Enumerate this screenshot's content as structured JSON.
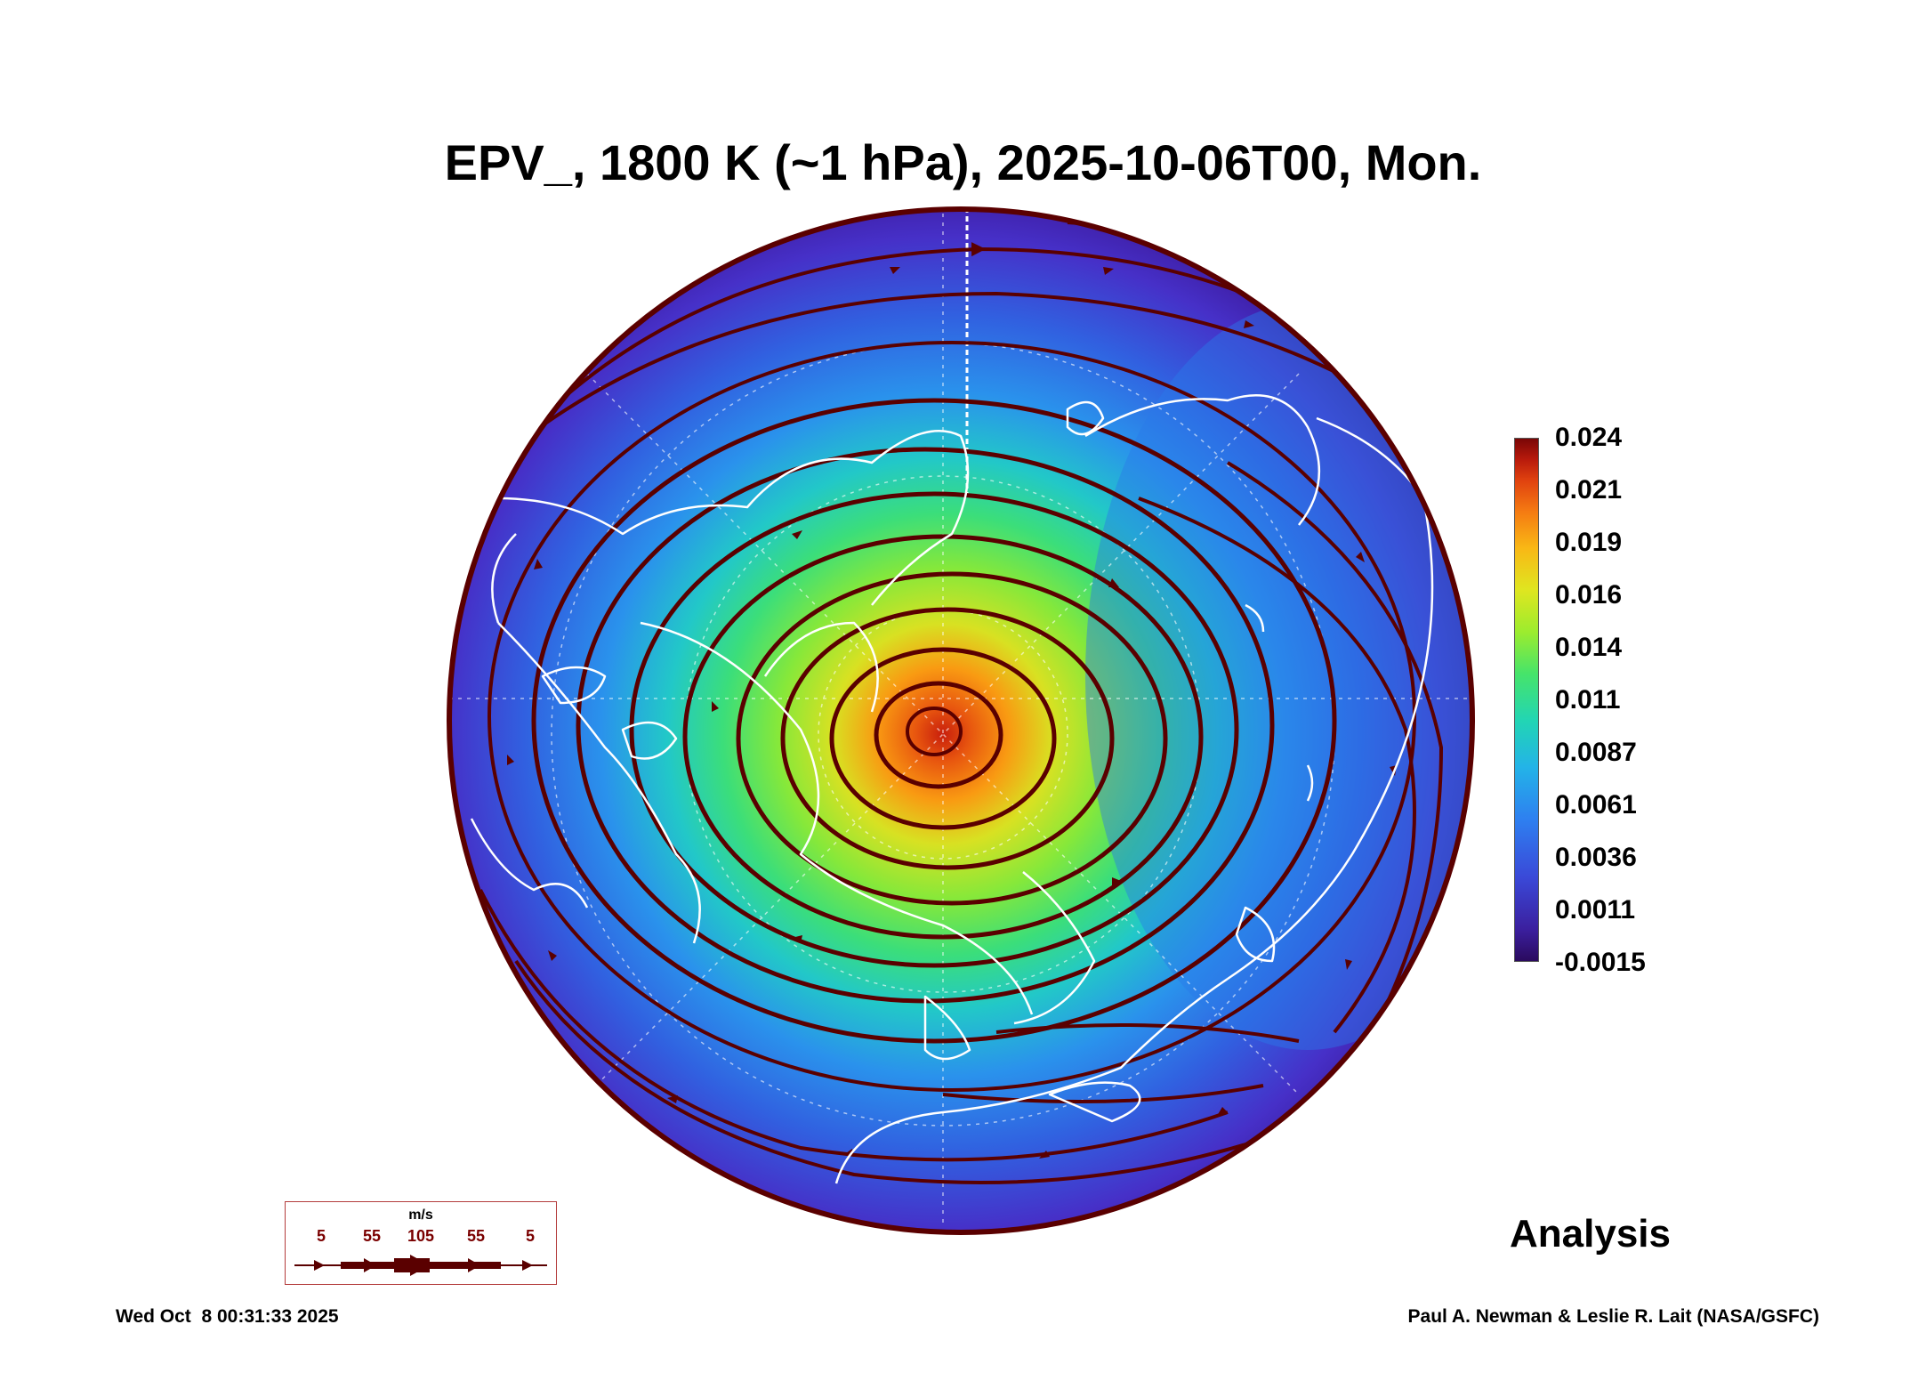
{
  "title": "EPV_, 1800 K (~1 hPa), 2025-10-06T00, Mon.",
  "colorbar": {
    "labels": [
      "0.024",
      "0.021",
      "0.019",
      "0.016",
      "0.014",
      "0.011",
      "0.0087",
      "0.0061",
      "0.0036",
      "0.0011",
      "-0.0015"
    ],
    "min": -0.0015,
    "max": 0.024
  },
  "stamp": "Analysis",
  "footer": {
    "timestamp": "Wed Oct  8 00:31:33 2025",
    "credit": "Paul A. Newman & Leslie R. Lait (NASA/GSFC)"
  },
  "wind_legend": {
    "unit": "m/s",
    "values": [
      "5",
      "55",
      "105",
      "55",
      "5"
    ]
  },
  "colors": {
    "streamline": "#5a0000",
    "coastline": "#ffffff",
    "low": "#3d1a9e",
    "high": "#c81e0c"
  }
}
